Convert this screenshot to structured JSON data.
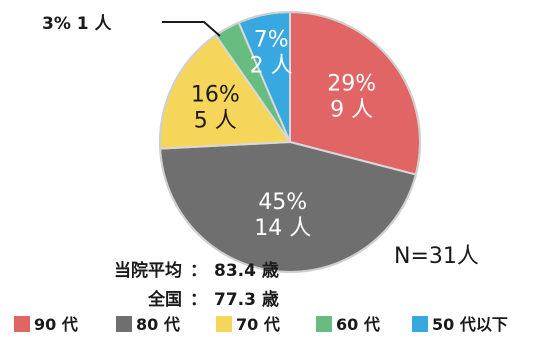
{
  "chart_data": {
    "type": "pie",
    "n_label": "N=31人",
    "slices": [
      {
        "label": "90 代",
        "percent_label": "29%",
        "count_label": "9 人",
        "value": 9,
        "color": "#e26565",
        "text_color": "#ffffff"
      },
      {
        "label": "80 代",
        "percent_label": "45%",
        "count_label": "14 人",
        "value": 14,
        "color": "#6f6f6f",
        "text_color": "#ffffff"
      },
      {
        "label": "70 代",
        "percent_label": "16%",
        "count_label": "5 人",
        "value": 5,
        "color": "#f5d55a",
        "text_color": "#1a1a1a"
      },
      {
        "label": "60 代",
        "percent_label": "3%",
        "count_label": "1 人",
        "value": 1,
        "color": "#66bd7f",
        "text_color": "#1a1a1a"
      },
      {
        "label": "50 代以下",
        "percent_label": "7%",
        "count_label": "2 人",
        "value": 2,
        "color": "#38a9e0",
        "text_color": "#ffffff"
      }
    ],
    "callout_60": "3% 1 人",
    "averages": [
      {
        "label": "当院平均",
        "value": "83.4 歳"
      },
      {
        "label": "全国",
        "value": "77.3 歳"
      }
    ]
  }
}
